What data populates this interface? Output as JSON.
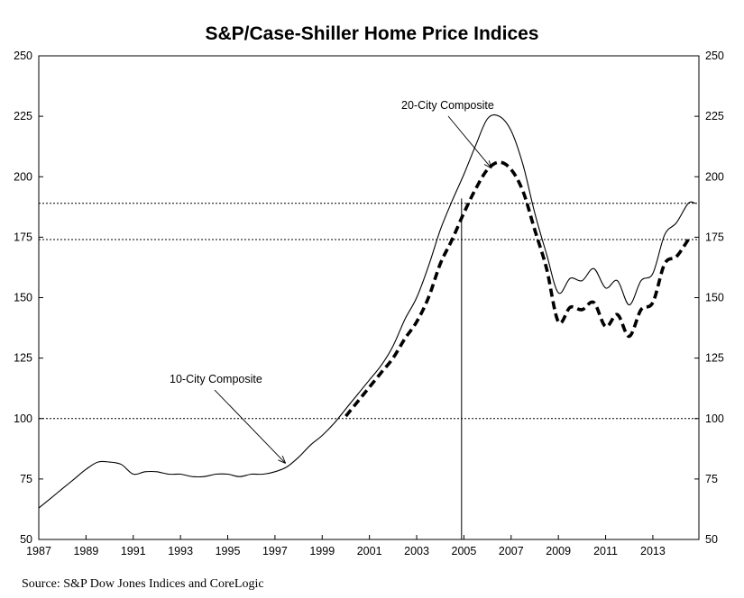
{
  "chart_data": {
    "type": "line",
    "title": "S&P/Case-Shiller Home Price Indices",
    "source": "Source: S&P Dow Jones Indices and CoreLogic",
    "xlim": [
      1987,
      2014.95
    ],
    "ylim": [
      50,
      250
    ],
    "x_ticks": [
      "1987",
      "1989",
      "1991",
      "1993",
      "1995",
      "1997",
      "1999",
      "2001",
      "2003",
      "2005",
      "2007",
      "2009",
      "2011",
      "2013"
    ],
    "y_ticks": [
      "50",
      "75",
      "100",
      "125",
      "150",
      "175",
      "200",
      "225",
      "250"
    ],
    "reference_lines": [
      100,
      174,
      189
    ],
    "vertical_marker": 2004.9,
    "grid": false,
    "legend": "none (inline annotations)",
    "series": [
      {
        "name": "10-City Composite",
        "style": "solid thin",
        "color": "#000000",
        "points": [
          [
            1987.0,
            63
          ],
          [
            1987.5,
            67
          ],
          [
            1988.0,
            71
          ],
          [
            1988.5,
            75
          ],
          [
            1989.0,
            79
          ],
          [
            1989.5,
            82
          ],
          [
            1990.0,
            82
          ],
          [
            1990.5,
            81
          ],
          [
            1991.0,
            77
          ],
          [
            1991.5,
            78
          ],
          [
            1992.0,
            78
          ],
          [
            1992.5,
            77
          ],
          [
            1993.0,
            77
          ],
          [
            1993.5,
            76
          ],
          [
            1994.0,
            76
          ],
          [
            1994.5,
            77
          ],
          [
            1995.0,
            77
          ],
          [
            1995.5,
            76
          ],
          [
            1996.0,
            77
          ],
          [
            1996.5,
            77
          ],
          [
            1997.0,
            78
          ],
          [
            1997.5,
            80
          ],
          [
            1998.0,
            84
          ],
          [
            1998.5,
            89
          ],
          [
            1999.0,
            93
          ],
          [
            1999.5,
            98
          ],
          [
            2000.0,
            104
          ],
          [
            2000.5,
            110
          ],
          [
            2001.0,
            116
          ],
          [
            2001.5,
            122
          ],
          [
            2002.0,
            130
          ],
          [
            2002.5,
            141
          ],
          [
            2003.0,
            150
          ],
          [
            2003.5,
            163
          ],
          [
            2004.0,
            178
          ],
          [
            2004.5,
            190
          ],
          [
            2005.0,
            201
          ],
          [
            2005.5,
            213
          ],
          [
            2006.0,
            224
          ],
          [
            2006.5,
            225
          ],
          [
            2007.0,
            219
          ],
          [
            2007.5,
            205
          ],
          [
            2008.0,
            185
          ],
          [
            2008.5,
            168
          ],
          [
            2009.0,
            152
          ],
          [
            2009.5,
            158
          ]
        ],
        "points_cont": [
          [
            2010.0,
            157
          ],
          [
            2010.5,
            162
          ],
          [
            2011.0,
            154
          ],
          [
            2011.5,
            157
          ],
          [
            2012.0,
            147
          ],
          [
            2012.5,
            157
          ],
          [
            2013.0,
            160
          ],
          [
            2013.5,
            176
          ],
          [
            2014.0,
            181
          ],
          [
            2014.5,
            189
          ],
          [
            2014.8,
            189
          ]
        ]
      },
      {
        "name": "20-City Composite",
        "style": "thick dashed",
        "color": "#000000",
        "points": [
          [
            2000.0,
            101
          ],
          [
            2000.5,
            107
          ],
          [
            2001.0,
            113
          ],
          [
            2001.5,
            119
          ],
          [
            2002.0,
            125
          ],
          [
            2002.5,
            133
          ],
          [
            2003.0,
            140
          ],
          [
            2003.5,
            150
          ],
          [
            2004.0,
            164
          ],
          [
            2004.5,
            174
          ],
          [
            2005.0,
            185
          ],
          [
            2005.5,
            195
          ],
          [
            2006.0,
            203
          ],
          [
            2006.5,
            206
          ],
          [
            2007.0,
            203
          ],
          [
            2007.5,
            194
          ],
          [
            2008.0,
            178
          ],
          [
            2008.5,
            162
          ],
          [
            2009.0,
            140
          ],
          [
            2009.5,
            146
          ],
          [
            2010.0,
            145
          ],
          [
            2010.5,
            148
          ],
          [
            2011.0,
            138
          ],
          [
            2011.5,
            143
          ],
          [
            2012.0,
            134
          ],
          [
            2012.5,
            145
          ],
          [
            2013.0,
            148
          ],
          [
            2013.5,
            164
          ],
          [
            2014.0,
            167
          ],
          [
            2014.5,
            174
          ]
        ]
      }
    ],
    "annotations": [
      {
        "text": "20-City Composite",
        "points_to": [
          2006.7,
          205
        ],
        "label_at": [
          2005.1,
          229
        ]
      },
      {
        "text": "10-City Composite",
        "points_to": [
          1997.6,
          80
        ],
        "label_at": [
          1994.0,
          115
        ]
      }
    ]
  }
}
